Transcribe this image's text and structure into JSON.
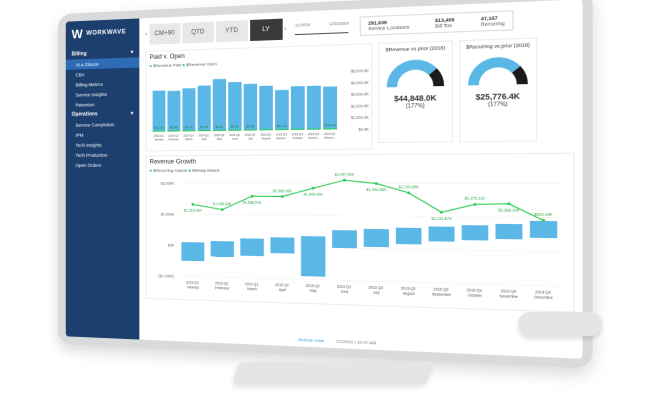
{
  "sidebar": {
    "brand": "WORKWAVE",
    "sections": [
      {
        "label": "Billing",
        "items": [
          "At a Glance",
          "CBA",
          "Billing Metrics",
          "Service Insights",
          "Retention"
        ]
      },
      {
        "label": "Operations",
        "items": [
          "Service Completion",
          "IPM",
          "Tech Insights",
          "Tech Production",
          "Open Orders"
        ]
      }
    ]
  },
  "tabs": [
    "CM+90",
    "QTD",
    "YTD",
    "LY"
  ],
  "active_tab": "LY",
  "date_range": {
    "start": "1/1/2019",
    "end": "12/31/2019"
  },
  "kpis": [
    {
      "value": "291,639",
      "label": "Service Locations"
    },
    {
      "value": "$13,409",
      "label": "Bill Tos"
    },
    {
      "value": "47,167",
      "label": "Recurring"
    }
  ],
  "paid_open": {
    "title": "Paid v. Open",
    "legend": [
      "$Revenue Paid",
      "$Revenue Open"
    ],
    "y_ticks": [
      "$5,000.0K",
      "$4,000.0K",
      "$3,000.0K",
      "$2,000.0K",
      "$1,000.0K",
      "$0.0K"
    ],
    "categories": [
      "2019 Q1 January",
      "2019 Q1 February",
      "2019 Q1 March",
      "2019 Q2 April",
      "2019 Q2 May",
      "2019 Q2 June",
      "2019 Q3 July",
      "2019 Q3 August",
      "2019 Q3 Septem...",
      "2019 Q4 October",
      "2019 Q4 Novem...",
      "2019 Q4 Decem..."
    ],
    "paid": [
      3700,
      3650,
      3850,
      4050,
      4600,
      4300,
      4100,
      3900,
      3500,
      3800,
      3800,
      3700
    ],
    "open_labels": [
      "$12.3K",
      "$5.9K",
      "$3.1K",
      "$7.5K",
      "$6.6K",
      "$5.9K",
      "$5.9K",
      "",
      "$11.1K",
      "",
      "",
      "$144.4K"
    ]
  },
  "gauges": [
    {
      "title": "$Revenue vs prior (2018)",
      "value": "$44,848.0K",
      "pct": "(177%)",
      "fill": 0.77
    },
    {
      "title": "$Recurring vs prior (2018)",
      "value": "$25,776.4K",
      "pct": "(177%)",
      "fill": 0.77
    }
  ],
  "growth": {
    "title": "Revenue Growth",
    "legend": [
      "$Recurring Cancel",
      "$Newly Added"
    ],
    "y_ticks": [
      "$2,000K",
      "$1,000K",
      "$0K",
      "($1,000K)"
    ],
    "categories": [
      "2019 Q1 January",
      "2019 Q1 February",
      "2019 Q1 March",
      "2019 Q2 April",
      "2019 Q2 May",
      "2019 Q2 June",
      "2019 Q3 July",
      "2019 Q3 August",
      "2019 Q3 September",
      "2019 Q4 October",
      "2019 Q4 November",
      "2019 Q4 December"
    ],
    "added": [
      1318.06,
      1158.64,
      1588.91,
      1585.36,
      1846.95,
      2097.6,
      1994.58,
      1715.65,
      1131.67,
      1375.11,
      1398.2,
      915.49
    ],
    "added_labels": [
      "$1,318.06K",
      "$1,158.64K",
      "$1,588.91K",
      "$1,585.36K",
      "$1,846.95K",
      "$2,097.60K",
      "$1,994.58K",
      "$1,715.65K",
      "$1,131.67K",
      "$1,375.11K",
      "$1,398.20K",
      "$915.49K"
    ],
    "cancel_ranges": [
      [
        -500,
        100
      ],
      [
        -350,
        150
      ],
      [
        -300,
        250
      ],
      [
        -200,
        300
      ],
      [
        -900,
        350
      ],
      [
        0,
        550
      ],
      [
        50,
        600
      ],
      [
        150,
        650
      ],
      [
        250,
        700
      ],
      [
        300,
        750
      ],
      [
        350,
        800
      ],
      [
        400,
        900
      ]
    ]
  },
  "footer": {
    "label": "Refresh Date",
    "value": "7/1/2020 | 10:47 AM"
  },
  "colors": {
    "sidebar": "#1d3f6e",
    "bar": "#5bb8e6",
    "line": "#2ecc55",
    "active": "#2e6cb5"
  }
}
